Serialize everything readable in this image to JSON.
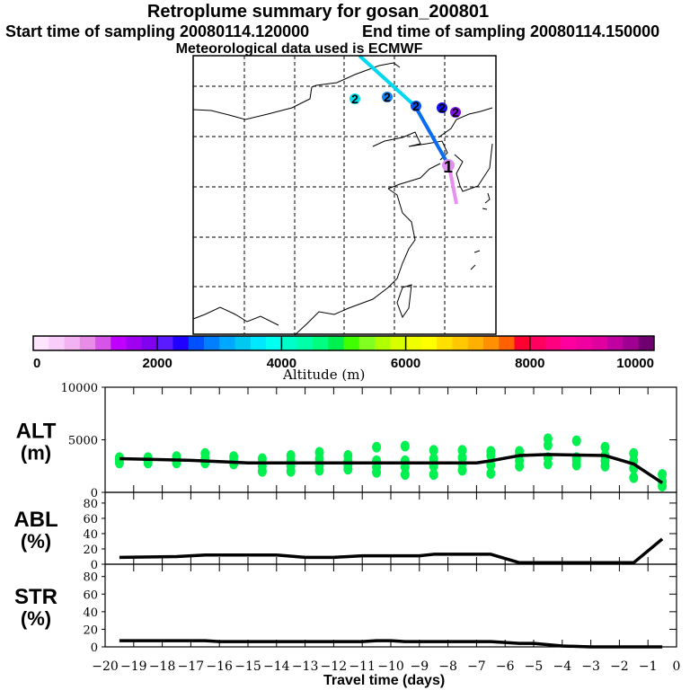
{
  "header": {
    "title": "Retroplume summary for gosan_200801",
    "start_time": "Start time of sampling 20080114.120000",
    "end_time": "End time of sampling 20080114.150000",
    "met_data": "Meteorological data used is ECMWF"
  },
  "map": {
    "marker_label": "2",
    "station_label": "1",
    "trajectory_colors": [
      "#00d8f0",
      "#0a6cf0",
      "#e890f0"
    ],
    "marker_colors": [
      "#00e0f0",
      "#1080f0",
      "#0a50f0",
      "#1010f0",
      "#8010e8"
    ]
  },
  "colorbar": {
    "label": "Altitude (m)",
    "ticks": [
      "0",
      "2000",
      "4000",
      "6000",
      "8000",
      "10000"
    ],
    "range": [
      0,
      10000
    ],
    "colors": [
      "#fde6fd",
      "#f9cdf9",
      "#f3b3f3",
      "#e88ce8",
      "#d654e8",
      "#c000ff",
      "#a000f0",
      "#8000f0",
      "#5a1cff",
      "#2000ff",
      "#0050ff",
      "#0080ff",
      "#00a8ff",
      "#00c8f0",
      "#00e8ff",
      "#00fff0",
      "#00ffc8",
      "#00ffa8",
      "#00ff80",
      "#00f050",
      "#40ff00",
      "#80ff20",
      "#b0ff00",
      "#d8ff00",
      "#f0ff00",
      "#ffff00",
      "#ffe000",
      "#ffc800",
      "#ffb000",
      "#ff9000",
      "#ff6000",
      "#ff0030",
      "#ff0060",
      "#ff0080",
      "#ff00a0",
      "#f000a0",
      "#e000a0",
      "#c000a0",
      "#a00090",
      "#700070"
    ]
  },
  "chart_data": [
    {
      "type": "line",
      "panel": "ALT",
      "ylabel": [
        "ALT",
        "(m)"
      ],
      "ylim": [
        0,
        10000
      ],
      "yticks": [
        "0",
        "5000",
        "10000"
      ],
      "ytick_values": [
        0,
        5000,
        10000
      ],
      "x": [
        -19.5,
        -17,
        -15,
        -7,
        -6.5,
        -5.5,
        -4.5,
        -2.5,
        -1.5,
        -0.5
      ],
      "y": [
        3200,
        3050,
        2800,
        2800,
        3000,
        3500,
        3600,
        3500,
        2700,
        900
      ],
      "scatter_color": "#00f050",
      "scatter": [
        [
          -19.5,
          [
            2800,
            3100,
            3300
          ]
        ],
        [
          -18.5,
          [
            2800,
            3000,
            3300
          ]
        ],
        [
          -17.5,
          [
            2800,
            3100,
            3400
          ]
        ],
        [
          -16.5,
          [
            2800,
            3200,
            3700
          ]
        ],
        [
          -15.5,
          [
            2700,
            3000,
            3400
          ]
        ],
        [
          -14.5,
          [
            2000,
            2500,
            3200
          ]
        ],
        [
          -13.5,
          [
            2000,
            2500,
            3000,
            3500
          ]
        ],
        [
          -12.5,
          [
            2100,
            2600,
            3200,
            3800
          ]
        ],
        [
          -11.5,
          [
            2200,
            2600,
            3000,
            3500
          ]
        ],
        [
          -10.5,
          [
            1900,
            2400,
            3000,
            4300
          ]
        ],
        [
          -9.5,
          [
            1700,
            2400,
            3000,
            4400
          ]
        ],
        [
          -8.5,
          [
            1700,
            2500,
            3200,
            4000
          ]
        ],
        [
          -7.5,
          [
            2100,
            2700,
            3300,
            4000
          ]
        ],
        [
          -6.5,
          [
            1800,
            2600,
            3500,
            3900
          ]
        ],
        [
          -5.5,
          [
            2500,
            3000,
            3600,
            3900
          ]
        ],
        [
          -4.5,
          [
            2700,
            3300,
            4500,
            5100
          ]
        ],
        [
          -3.5,
          [
            2600,
            3000,
            3300,
            4900
          ]
        ],
        [
          -2.5,
          [
            2500,
            3000,
            3500,
            4300
          ]
        ],
        [
          -1.5,
          [
            1400,
            2300,
            3000,
            3700
          ]
        ],
        [
          -0.5,
          [
            600,
            1000,
            1700
          ]
        ]
      ]
    },
    {
      "type": "line",
      "panel": "ABL",
      "ylabel": [
        "ABL",
        "(%)"
      ],
      "ylim": [
        0,
        94
      ],
      "yticks": [
        "0",
        "20",
        "40",
        "60",
        "80"
      ],
      "ytick_values": [
        0,
        20,
        40,
        60,
        80
      ],
      "x": [
        -19.5,
        -17.5,
        -16.5,
        -14,
        -13,
        -12,
        -11,
        -9,
        -8.5,
        -6.5,
        -5.5,
        -1.5,
        -0.5
      ],
      "y": [
        9,
        10,
        12,
        12,
        9,
        9,
        11,
        11,
        13,
        13,
        2,
        2,
        33
      ]
    },
    {
      "type": "line",
      "panel": "STR",
      "ylabel": [
        "STR",
        "(%)"
      ],
      "ylim": [
        0,
        94
      ],
      "yticks": [
        "0",
        "20",
        "40",
        "60",
        "80"
      ],
      "ytick_values": [
        0,
        20,
        40,
        60,
        80
      ],
      "x": [
        -19.5,
        -16.5,
        -16,
        -11,
        -10.5,
        -10,
        -9.5,
        -6.5,
        -5.5,
        -5,
        -4,
        -3,
        -0.5
      ],
      "y": [
        7,
        7,
        6,
        6,
        7,
        7,
        6,
        6,
        4,
        4,
        1,
        0,
        0
      ]
    }
  ],
  "xaxis": {
    "label": "Travel time (days)",
    "xlim": [
      -20,
      0
    ],
    "ticks": [
      "−20",
      "−19",
      "−18",
      "−17",
      "−16",
      "−15",
      "−14",
      "−13",
      "−12",
      "−11",
      "−10",
      "−9",
      "−8",
      "−7",
      "−6",
      "−5",
      "−4",
      "−3",
      "−2",
      "−1",
      "0"
    ]
  }
}
